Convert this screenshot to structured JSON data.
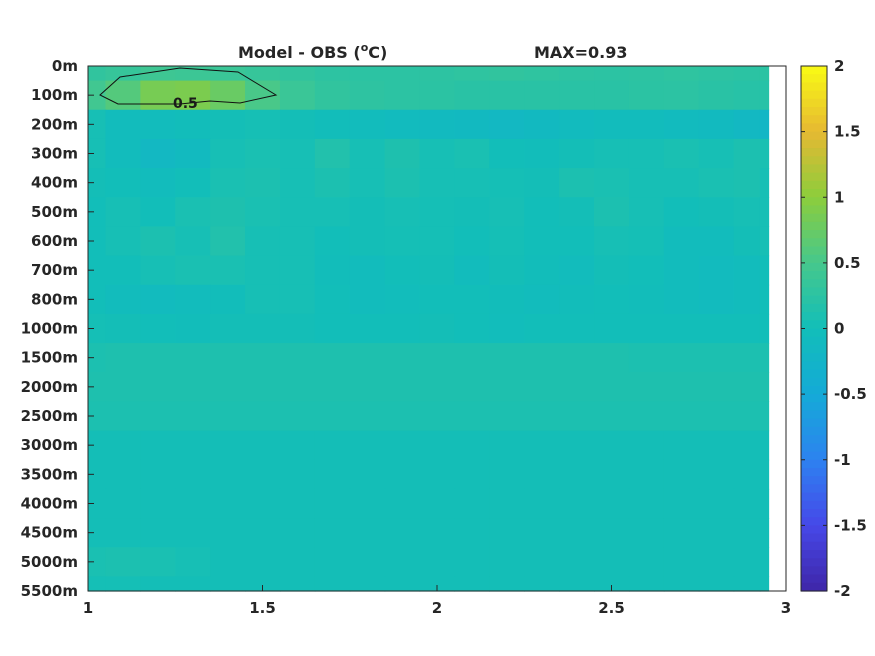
{
  "chart_data": {
    "type": "heatmap",
    "title": "Model - OBS (°C)",
    "title_parts": {
      "prefix": "Model - OBS (",
      "superscript": "o",
      "suffix": "C)"
    },
    "max_label": "MAX=0.93",
    "xlim": [
      1,
      3
    ],
    "x_ticks": [
      "1",
      "1.5",
      "2",
      "2.5",
      "3"
    ],
    "x_tick_values": [
      1,
      1.5,
      2,
      2.5,
      3
    ],
    "y_ticks": [
      "0m",
      "100m",
      "200m",
      "300m",
      "400m",
      "500m",
      "600m",
      "700m",
      "800m",
      "1000m",
      "1500m",
      "2000m",
      "2500m",
      "3000m",
      "3500m",
      "4000m",
      "4500m",
      "5000m",
      "5500m"
    ],
    "colorbar": {
      "min": -2,
      "max": 2,
      "ticks": [
        "2",
        "1.5",
        "1",
        "0.5",
        "0",
        "-0.5",
        "-1",
        "-1.5",
        "-2"
      ],
      "tick_values": [
        2,
        1.5,
        1,
        0.5,
        0,
        -0.5,
        -1,
        -1.5,
        -2
      ],
      "colormap": "parula"
    },
    "contour_label": "0.5",
    "contour_level": 0.5,
    "x_nodes": [
      1.0,
      1.1,
      1.2,
      1.3,
      1.4,
      1.5,
      1.6,
      1.7,
      1.8,
      1.9,
      2.0,
      2.1,
      2.2,
      2.3,
      2.4,
      2.5,
      2.6,
      2.7,
      2.8,
      2.9,
      2.95
    ],
    "values": [
      [
        0.3,
        0.35,
        0.42,
        0.4,
        0.38,
        0.35,
        0.3,
        0.26,
        0.25,
        0.25,
        0.26,
        0.28,
        0.3,
        0.28,
        0.26,
        0.25,
        0.26,
        0.28,
        0.26,
        0.24,
        0.24
      ],
      [
        0.45,
        0.6,
        0.85,
        0.88,
        0.75,
        0.52,
        0.38,
        0.3,
        0.27,
        0.25,
        0.24,
        0.22,
        0.22,
        0.22,
        0.22,
        0.22,
        0.24,
        0.25,
        0.22,
        0.2,
        0.2
      ],
      [
        0.05,
        -0.05,
        -0.05,
        -0.02,
        0.02,
        0.04,
        0.02,
        -0.02,
        -0.05,
        -0.08,
        -0.1,
        -0.12,
        -0.15,
        -0.12,
        -0.08,
        -0.05,
        -0.05,
        -0.08,
        -0.1,
        -0.15,
        -0.2
      ],
      [
        0.05,
        -0.05,
        -0.15,
        -0.1,
        0.05,
        0.08,
        0.05,
        0.15,
        0.05,
        0.12,
        0.05,
        0.08,
        0.0,
        -0.02,
        0.02,
        0.05,
        0.05,
        0.08,
        0.05,
        0.1,
        0.08
      ],
      [
        0.02,
        0.0,
        -0.05,
        0.0,
        0.08,
        0.1,
        0.05,
        0.1,
        0.05,
        0.1,
        0.05,
        0.05,
        0.03,
        0.02,
        0.1,
        0.08,
        0.05,
        0.05,
        0.08,
        0.1,
        0.05
      ],
      [
        0.0,
        0.05,
        0.0,
        0.08,
        0.12,
        0.08,
        0.05,
        0.05,
        0.02,
        0.05,
        0.03,
        0.02,
        0.05,
        0.0,
        0.02,
        0.1,
        0.05,
        0.0,
        0.02,
        0.05,
        0.05
      ],
      [
        0.0,
        0.05,
        0.1,
        0.05,
        0.15,
        0.05,
        0.05,
        0.0,
        0.02,
        0.03,
        0.03,
        0.0,
        0.03,
        0.0,
        0.0,
        0.05,
        0.03,
        -0.05,
        -0.05,
        0.02,
        0.05
      ],
      [
        0.0,
        0.0,
        0.05,
        0.08,
        0.08,
        0.05,
        0.05,
        -0.02,
        -0.05,
        0.0,
        0.02,
        -0.05,
        0.02,
        -0.02,
        -0.05,
        0.02,
        0.0,
        -0.05,
        -0.08,
        -0.05,
        0.0
      ],
      [
        0.0,
        -0.05,
        -0.08,
        -0.05,
        -0.02,
        0.05,
        0.05,
        0.0,
        -0.05,
        -0.03,
        0.0,
        0.0,
        -0.02,
        -0.05,
        -0.02,
        0.0,
        -0.02,
        -0.05,
        -0.08,
        -0.05,
        0.0
      ],
      [
        0.03,
        0.02,
        0.0,
        -0.02,
        0.02,
        0.02,
        0.02,
        0.0,
        0.0,
        0.0,
        0.02,
        0.0,
        -0.03,
        0.0,
        0.0,
        0.0,
        0.0,
        0.0,
        0.0,
        0.0,
        0.0
      ],
      [
        0.1,
        0.12,
        0.12,
        0.12,
        0.12,
        0.12,
        0.12,
        0.12,
        0.12,
        0.12,
        0.12,
        0.12,
        0.12,
        0.12,
        0.12,
        0.12,
        0.1,
        0.1,
        0.1,
        0.1,
        0.1
      ],
      [
        0.12,
        0.12,
        0.12,
        0.12,
        0.12,
        0.12,
        0.12,
        0.12,
        0.12,
        0.12,
        0.12,
        0.12,
        0.12,
        0.12,
        0.12,
        0.12,
        0.12,
        0.12,
        0.12,
        0.12,
        0.12
      ],
      [
        0.1,
        0.1,
        0.1,
        0.1,
        0.1,
        0.1,
        0.1,
        0.1,
        0.1,
        0.1,
        0.1,
        0.1,
        0.1,
        0.1,
        0.1,
        0.1,
        0.1,
        0.1,
        0.1,
        0.1,
        0.1
      ],
      [
        0.02,
        0.02,
        0.02,
        0.02,
        0.02,
        0.02,
        0.02,
        0.02,
        0.02,
        0.02,
        0.02,
        0.02,
        0.02,
        0.02,
        0.02,
        0.02,
        0.02,
        0.02,
        0.02,
        0.02,
        0.02
      ],
      [
        0.02,
        0.02,
        0.02,
        0.02,
        0.02,
        0.02,
        0.02,
        0.02,
        0.02,
        0.02,
        0.02,
        0.02,
        0.02,
        0.02,
        0.02,
        0.02,
        0.02,
        0.02,
        0.02,
        0.02,
        0.02
      ],
      [
        0.02,
        0.02,
        0.02,
        0.02,
        0.02,
        0.02,
        0.02,
        0.02,
        0.02,
        0.02,
        0.02,
        0.02,
        0.02,
        0.02,
        0.02,
        0.02,
        0.02,
        0.02,
        0.02,
        0.02,
        0.02
      ],
      [
        0.02,
        0.02,
        0.02,
        0.02,
        0.02,
        0.02,
        0.02,
        0.02,
        0.02,
        0.02,
        0.02,
        0.02,
        0.02,
        0.02,
        0.02,
        0.02,
        0.02,
        0.02,
        0.02,
        0.02,
        0.02
      ],
      [
        0.08,
        0.1,
        0.08,
        0.05,
        0.02,
        0.02,
        0.02,
        0.02,
        0.02,
        0.02,
        0.02,
        0.02,
        0.02,
        0.02,
        0.02,
        0.02,
        0.02,
        0.02,
        0.02,
        0.02,
        0.02
      ],
      [
        0.03,
        0.03,
        0.02,
        0.02,
        0.02,
        0.02,
        0.02,
        0.02,
        0.02,
        0.02,
        0.02,
        0.02,
        0.02,
        0.02,
        0.02,
        0.02,
        0.02,
        0.02,
        0.02,
        0.02,
        0.02
      ]
    ]
  }
}
